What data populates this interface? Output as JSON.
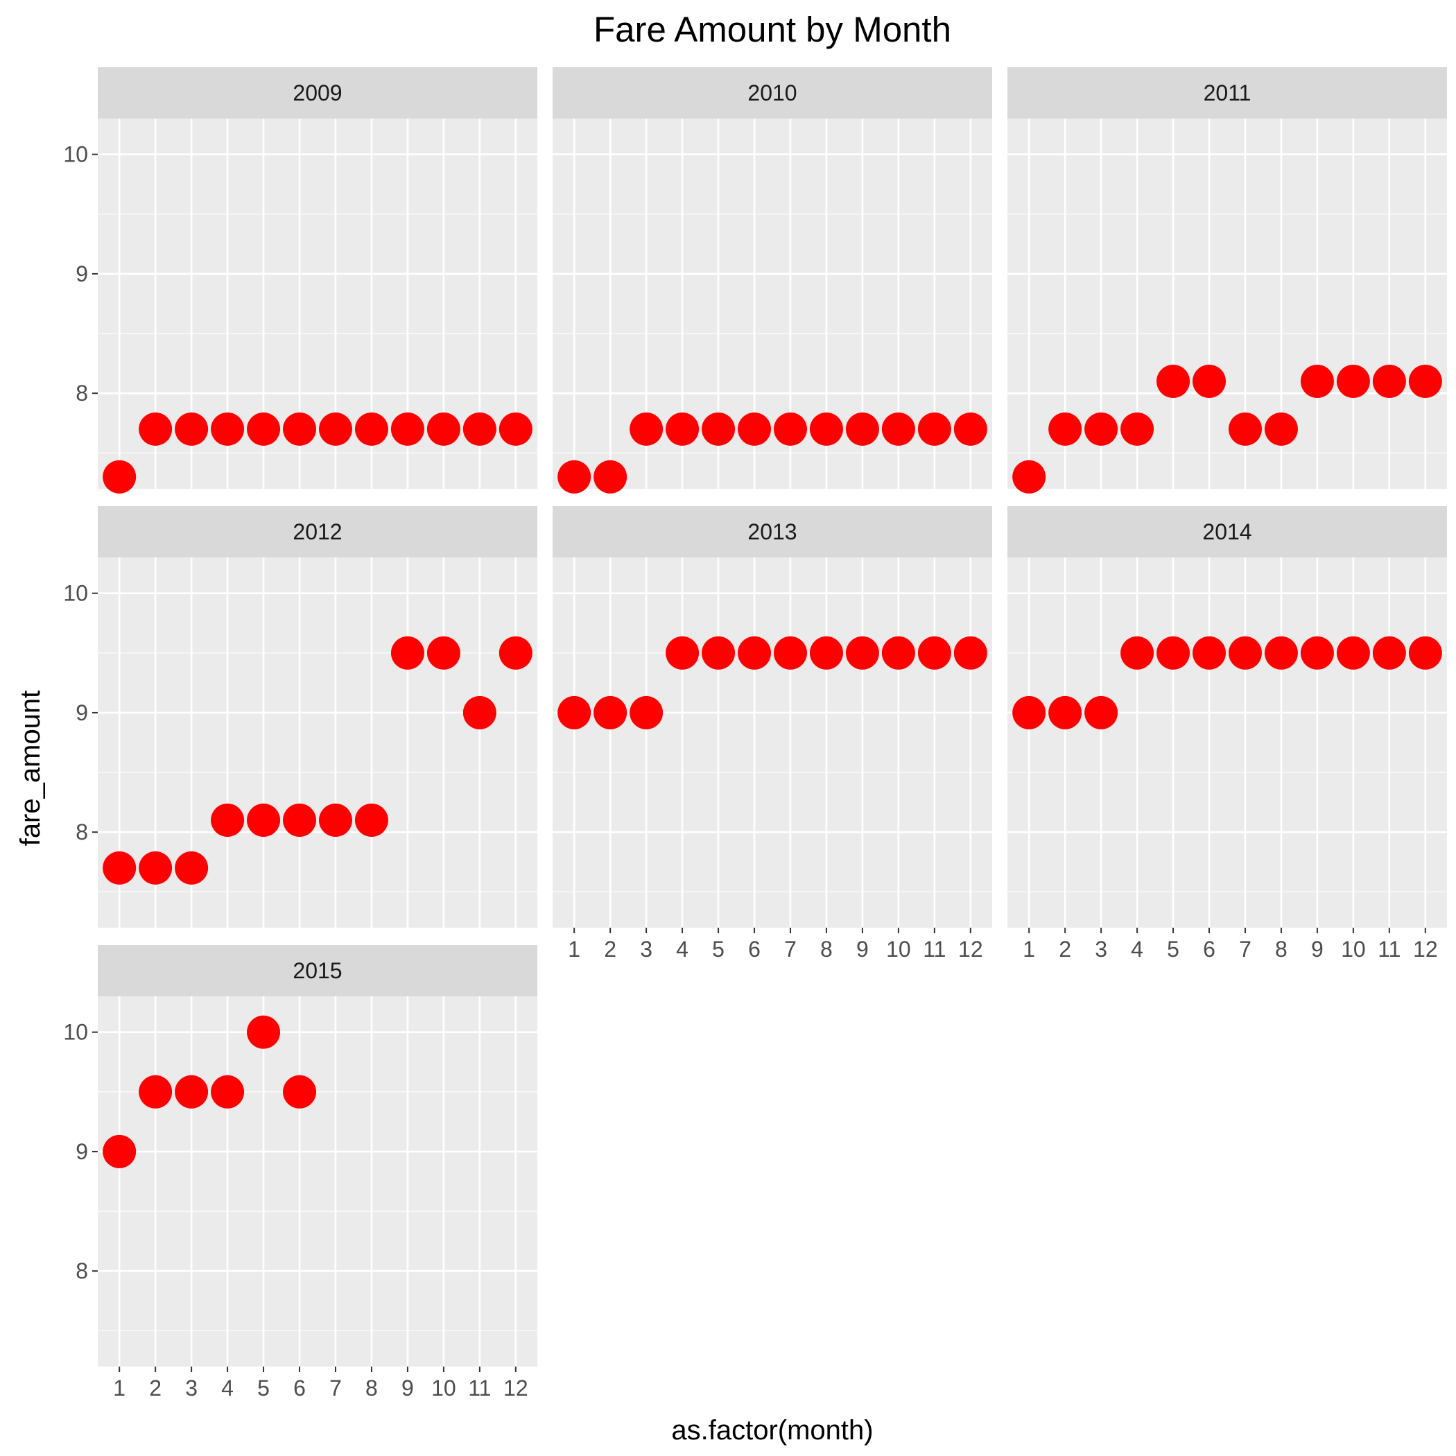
{
  "colors": {
    "panel_bg": "#ebebeb",
    "strip_bg": "#d9d9d9",
    "grid": "#ffffff",
    "point": "#ff0000",
    "tick": "#333333"
  },
  "chart_data": {
    "type": "scatter",
    "title": "Fare Amount by Month",
    "xlabel": "as.factor(month)",
    "ylabel": "fare_amount",
    "x_categories": [
      "1",
      "2",
      "3",
      "4",
      "5",
      "6",
      "7",
      "8",
      "9",
      "10",
      "11",
      "12"
    ],
    "ylim": [
      7.2,
      10.3
    ],
    "y_ticks": [
      8,
      9,
      10
    ],
    "grid": true,
    "facets": [
      {
        "label": "2009",
        "x": [
          1,
          2,
          3,
          4,
          5,
          6,
          7,
          8,
          9,
          10,
          11,
          12
        ],
        "y": [
          7.3,
          7.7,
          7.7,
          7.7,
          7.7,
          7.7,
          7.7,
          7.7,
          7.7,
          7.7,
          7.7,
          7.7
        ]
      },
      {
        "label": "2010",
        "x": [
          1,
          2,
          3,
          4,
          5,
          6,
          7,
          8,
          9,
          10,
          11,
          12
        ],
        "y": [
          7.3,
          7.3,
          7.7,
          7.7,
          7.7,
          7.7,
          7.7,
          7.7,
          7.7,
          7.7,
          7.7,
          7.7
        ]
      },
      {
        "label": "2011",
        "x": [
          1,
          2,
          3,
          4,
          5,
          6,
          7,
          8,
          9,
          10,
          11,
          12
        ],
        "y": [
          7.3,
          7.7,
          7.7,
          7.7,
          8.1,
          8.1,
          7.7,
          7.7,
          8.1,
          8.1,
          8.1,
          8.1
        ]
      },
      {
        "label": "2012",
        "x": [
          1,
          2,
          3,
          4,
          5,
          6,
          7,
          8,
          9,
          10,
          11,
          12
        ],
        "y": [
          7.7,
          7.7,
          7.7,
          8.1,
          8.1,
          8.1,
          8.1,
          8.1,
          9.5,
          9.5,
          9.0,
          9.5
        ]
      },
      {
        "label": "2013",
        "x": [
          1,
          2,
          3,
          4,
          5,
          6,
          7,
          8,
          9,
          10,
          11,
          12
        ],
        "y": [
          9.0,
          9.0,
          9.0,
          9.5,
          9.5,
          9.5,
          9.5,
          9.5,
          9.5,
          9.5,
          9.5,
          9.5
        ]
      },
      {
        "label": "2014",
        "x": [
          1,
          2,
          3,
          4,
          5,
          6,
          7,
          8,
          9,
          10,
          11,
          12
        ],
        "y": [
          9.0,
          9.0,
          9.0,
          9.5,
          9.5,
          9.5,
          9.5,
          9.5,
          9.5,
          9.5,
          9.5,
          9.5
        ]
      },
      {
        "label": "2015",
        "x": [
          1,
          2,
          3,
          4,
          5,
          6
        ],
        "y": [
          9.0,
          9.5,
          9.5,
          9.5,
          10.0,
          9.5
        ]
      }
    ]
  }
}
